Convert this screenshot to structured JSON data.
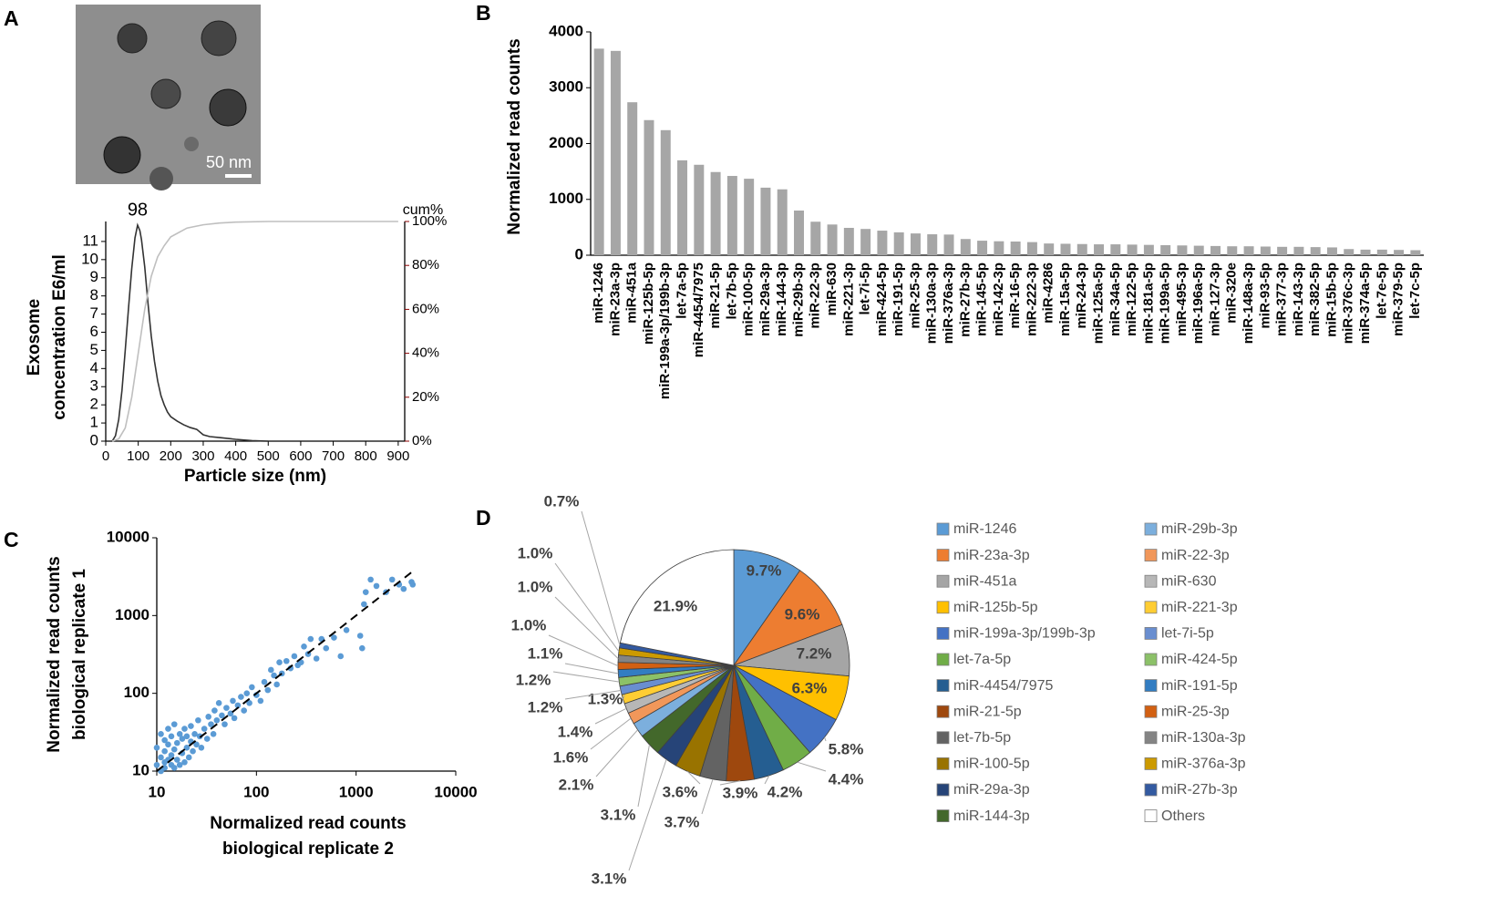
{
  "panels": [
    "A",
    "B",
    "C",
    "D"
  ],
  "scale_bar": "50 nm",
  "chart_data": [
    {
      "type": "line",
      "xlabel": "Particle size (nm)",
      "ylabel": [
        "Exosome",
        "concentration E6/ml"
      ],
      "y2label": "cum%",
      "annotation": "98",
      "xlim": [
        0,
        920
      ],
      "xticks": [
        0,
        100,
        200,
        300,
        400,
        500,
        600,
        700,
        800,
        900
      ],
      "ylim": [
        0,
        12.1
      ],
      "yticks": [
        0,
        1,
        2,
        3,
        4,
        5,
        6,
        7,
        8,
        9,
        10,
        11
      ],
      "y2lim": [
        0,
        100
      ],
      "y2ticks": [
        {
          "value": 0,
          "label": "0%"
        },
        {
          "value": 20,
          "label": "20%"
        },
        {
          "value": 40,
          "label": "40%"
        },
        {
          "value": 60,
          "label": "60%"
        },
        {
          "value": 80,
          "label": "80%"
        },
        {
          "value": 100,
          "label": "100%"
        }
      ],
      "series": [
        {
          "color": "#333333",
          "x": [
            20,
            30,
            40,
            50,
            60,
            70,
            80,
            90,
            98,
            105,
            110,
            120,
            130,
            140,
            150,
            160,
            170,
            180,
            190,
            200,
            220,
            240,
            260,
            280,
            300,
            320,
            350,
            400,
            450,
            500
          ],
          "values": [
            0,
            0.3,
            1.2,
            2.8,
            5,
            7.3,
            9.5,
            11.2,
            11.9,
            11.6,
            11.1,
            9.6,
            7.6,
            5.8,
            4.4,
            3.3,
            2.5,
            2.0,
            1.6,
            1.35,
            1.1,
            0.9,
            0.75,
            0.65,
            0.35,
            0.25,
            0.2,
            0.1,
            0.03,
            0
          ]
        },
        {
          "color": "#bfbfbf",
          "axis": "y2",
          "x": [
            20,
            40,
            60,
            80,
            100,
            120,
            140,
            160,
            180,
            200,
            250,
            300,
            350,
            400,
            500,
            900
          ],
          "values": [
            0,
            1,
            6,
            20,
            40,
            60,
            75,
            84,
            89,
            93,
            97,
            98.5,
            99.3,
            99.7,
            100,
            100
          ]
        }
      ]
    },
    {
      "type": "bar",
      "ylabel": "Normalized read counts",
      "color": "#a6a6a6",
      "ylim": [
        0,
        4000
      ],
      "yticks": [
        0,
        1000,
        2000,
        3000,
        4000
      ],
      "categories": [
        "miR-1246",
        "miR-23a-3p",
        "miR-451a",
        "miR-125b-5p",
        "miR-199a-3p/199b-3p",
        "let-7a-5p",
        "miR-4454/7975",
        "miR-21-5p",
        "let-7b-5p",
        "miR-100-5p",
        "miR-29a-3p",
        "miR-144-3p",
        "miR-29b-3p",
        "miR-22-3p",
        "miR-630",
        "miR-221-3p",
        "let-7i-5p",
        "miR-424-5p",
        "miR-191-5p",
        "miR-25-3p",
        "miR-130a-3p",
        "miR-376a-3p",
        "miR-27b-3p",
        "miR-145-5p",
        "miR-142-3p",
        "miR-16-5p",
        "miR-222-3p",
        "miR-4286",
        "miR-15a-5p",
        "miR-24-3p",
        "miR-125a-5p",
        "miR-34a-5p",
        "miR-122-5p",
        "miR-181a-5p",
        "miR-199a-5p",
        "miR-495-3p",
        "miR-196a-5p",
        "miR-127-3p",
        "miR-320e",
        "miR-148a-3p",
        "miR-93-5p",
        "miR-377-3p",
        "miR-143-3p",
        "miR-382-5p",
        "miR-15b-5p",
        "miR-376c-3p",
        "miR-374a-5p",
        "let-7e-5p",
        "miR-379-5p",
        "let-7c-5p"
      ],
      "values": [
        3700,
        3660,
        2740,
        2420,
        2240,
        1700,
        1620,
        1490,
        1420,
        1370,
        1210,
        1180,
        800,
        600,
        550,
        490,
        470,
        440,
        410,
        390,
        375,
        370,
        290,
        260,
        250,
        245,
        235,
        210,
        205,
        200,
        195,
        195,
        190,
        185,
        180,
        175,
        170,
        165,
        160,
        160,
        155,
        150,
        150,
        145,
        140,
        110,
        100,
        100,
        95,
        90
      ]
    },
    {
      "type": "scatter",
      "xlabel": [
        "Normalized read counts",
        "biological replicate 2"
      ],
      "ylabel": [
        "Normalized read counts",
        "biological replicate 1"
      ],
      "color": "#5b9bd5",
      "xscale": "log",
      "yscale": "log",
      "xlim": [
        10,
        10000
      ],
      "ylim": [
        10,
        10000
      ],
      "xticks": [
        10,
        100,
        1000,
        10000
      ],
      "yticks": [
        10,
        100,
        1000,
        10000
      ],
      "x": [
        10,
        10,
        11,
        11,
        11,
        12,
        12,
        12,
        12,
        13,
        13,
        13,
        14,
        14,
        14,
        15,
        15,
        15,
        16,
        16,
        17,
        17,
        18,
        18,
        19,
        19,
        20,
        20,
        21,
        22,
        22,
        23,
        24,
        25,
        26,
        27,
        28,
        30,
        32,
        33,
        35,
        37,
        38,
        40,
        42,
        45,
        48,
        50,
        55,
        58,
        60,
        65,
        70,
        75,
        80,
        85,
        90,
        100,
        110,
        120,
        130,
        140,
        150,
        160,
        170,
        180,
        200,
        220,
        240,
        260,
        280,
        300,
        330,
        350,
        400,
        450,
        500,
        600,
        700,
        800,
        1100,
        1150,
        1200,
        1250,
        1400,
        1600,
        2000,
        2300,
        2700,
        3000,
        3600,
        3700
      ],
      "values": [
        12,
        20,
        10,
        15,
        30,
        13,
        18,
        25,
        11,
        14,
        22,
        35,
        12,
        16,
        28,
        11,
        19,
        40,
        14,
        23,
        12,
        30,
        17,
        26,
        13,
        35,
        20,
        28,
        15,
        24,
        38,
        18,
        30,
        22,
        45,
        28,
        20,
        35,
        26,
        50,
        40,
        30,
        60,
        45,
        75,
        52,
        40,
        65,
        55,
        80,
        48,
        70,
        90,
        60,
        100,
        75,
        120,
        95,
        80,
        140,
        110,
        200,
        170,
        130,
        250,
        180,
        260,
        210,
        300,
        230,
        250,
        400,
        320,
        500,
        280,
        500,
        380,
        520,
        300,
        650,
        550,
        380,
        1400,
        2000,
        2900,
        2400,
        2000,
        2900,
        2500,
        2200,
        2700,
        2500
      ]
    },
    {
      "type": "pie",
      "categories": [
        "miR-1246",
        "miR-23a-3p",
        "miR-451a",
        "miR-125b-5p",
        "miR-199a-3p/199b-3p",
        "let-7a-5p",
        "miR-4454/7975",
        "miR-21-5p",
        "let-7b-5p",
        "miR-100-5p",
        "miR-29a-3p",
        "miR-144-3p",
        "miR-29b-3p",
        "miR-22-3p",
        "miR-630",
        "miR-221-3p",
        "let-7i-5p",
        "miR-424-5p",
        "miR-191-5p",
        "miR-25-3p",
        "miR-130a-3p",
        "miR-376a-3p",
        "miR-27b-3p",
        "Others"
      ],
      "values": [
        9.7,
        9.6,
        7.2,
        6.3,
        5.8,
        4.4,
        4.2,
        3.9,
        3.7,
        3.6,
        3.1,
        3.1,
        2.1,
        1.6,
        1.4,
        1.3,
        1.2,
        1.2,
        1.1,
        1.0,
        1.0,
        1.0,
        0.7,
        21.9
      ],
      "value_labels": [
        "9.7%",
        "9.6%",
        "7.2%",
        "6.3%",
        "5.8%",
        "4.4%",
        "4.2%",
        "3.9%",
        "3.7%",
        "3.6%",
        "3.1%",
        "3.1%",
        "2.1%",
        "1.6%",
        "1.4%",
        "1.3%",
        "1.2%",
        "1.2%",
        "1.1%",
        "1.0%",
        "1.0%",
        "1.0%",
        "0.7%",
        "21.9%"
      ],
      "colors": [
        "#5b9bd5",
        "#ed7d31",
        "#a5a5a5",
        "#ffc000",
        "#4472c4",
        "#70ad47",
        "#255e91",
        "#9e480e",
        "#636363",
        "#997300",
        "#264478",
        "#43682b",
        "#7cafdd",
        "#f1975a",
        "#b7b7b7",
        "#ffcd33",
        "#698ed0",
        "#8cc168",
        "#327dc2",
        "#d26012",
        "#848484",
        "#cc9a00",
        "#335aa1",
        "#ffffff"
      ]
    }
  ]
}
